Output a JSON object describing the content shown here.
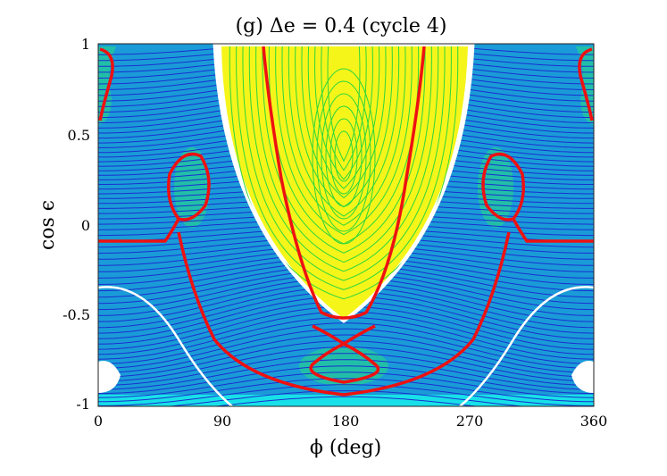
{
  "chart_data": {
    "type": "contour",
    "title": "(g) Δe = 0.4 (cycle 4)",
    "xlabel": "ϕ (deg)",
    "ylabel": "cos ϵ",
    "xlim": [
      0,
      360
    ],
    "ylim": [
      -1,
      1
    ],
    "x_ticks": [
      {
        "value": 0,
        "label": "0"
      },
      {
        "value": 90,
        "label": "90"
      },
      {
        "value": 180,
        "label": "180"
      },
      {
        "value": 270,
        "label": "270"
      },
      {
        "value": 360,
        "label": "360"
      }
    ],
    "y_ticks": [
      {
        "value": 1,
        "label": "1"
      },
      {
        "value": 0.5,
        "label": "0.5"
      },
      {
        "value": 0,
        "label": "0"
      },
      {
        "value": -0.5,
        "label": "-0.5"
      },
      {
        "value": -1,
        "label": "-1"
      }
    ],
    "grid": false,
    "colors": {
      "background": "#1a9bd8",
      "yellow_region": "#f5f51a",
      "teal_region": "#22bfa8",
      "cyan_strip": "#18e0e8",
      "forbidden": "#ffffff",
      "separatrix": "#ee1111",
      "contour_blue": "#1a2fd0",
      "contour_green": "#2ed63a"
    },
    "separatrices": [
      {
        "name": "upper-cassini-boundary",
        "points": [
          [
            120,
            1
          ],
          [
            135,
            0.6
          ],
          [
            150,
            0
          ],
          [
            165,
            -0.45
          ],
          [
            175,
            -0.55
          ],
          [
            185,
            -0.55
          ],
          [
            195,
            -0.45
          ],
          [
            210,
            0
          ],
          [
            225,
            0.6
          ],
          [
            240,
            1
          ]
        ]
      },
      {
        "name": "lower-x-loop",
        "points": [
          [
            157,
            -0.82
          ],
          [
            165,
            -0.75
          ],
          [
            178,
            -0.65
          ],
          [
            185,
            -0.57
          ],
          [
            200,
            -0.5
          ]
        ]
      },
      {
        "name": "lower-x-loop-2",
        "points": [
          [
            157,
            -0.56
          ],
          [
            170,
            -0.6
          ],
          [
            182,
            -0.7
          ],
          [
            195,
            -0.78
          ],
          [
            203,
            -0.82
          ]
        ]
      },
      {
        "name": "bottom-band",
        "points": [
          [
            5,
            -0.1
          ],
          [
            40,
            -0.1
          ],
          [
            65,
            -0.45
          ],
          [
            90,
            -0.8
          ],
          [
            120,
            -0.93
          ],
          [
            180,
            -0.95
          ],
          [
            240,
            -0.93
          ],
          [
            270,
            -0.8
          ],
          [
            295,
            -0.45
          ],
          [
            320,
            -0.1
          ],
          [
            355,
            -0.1
          ]
        ]
      }
    ]
  }
}
